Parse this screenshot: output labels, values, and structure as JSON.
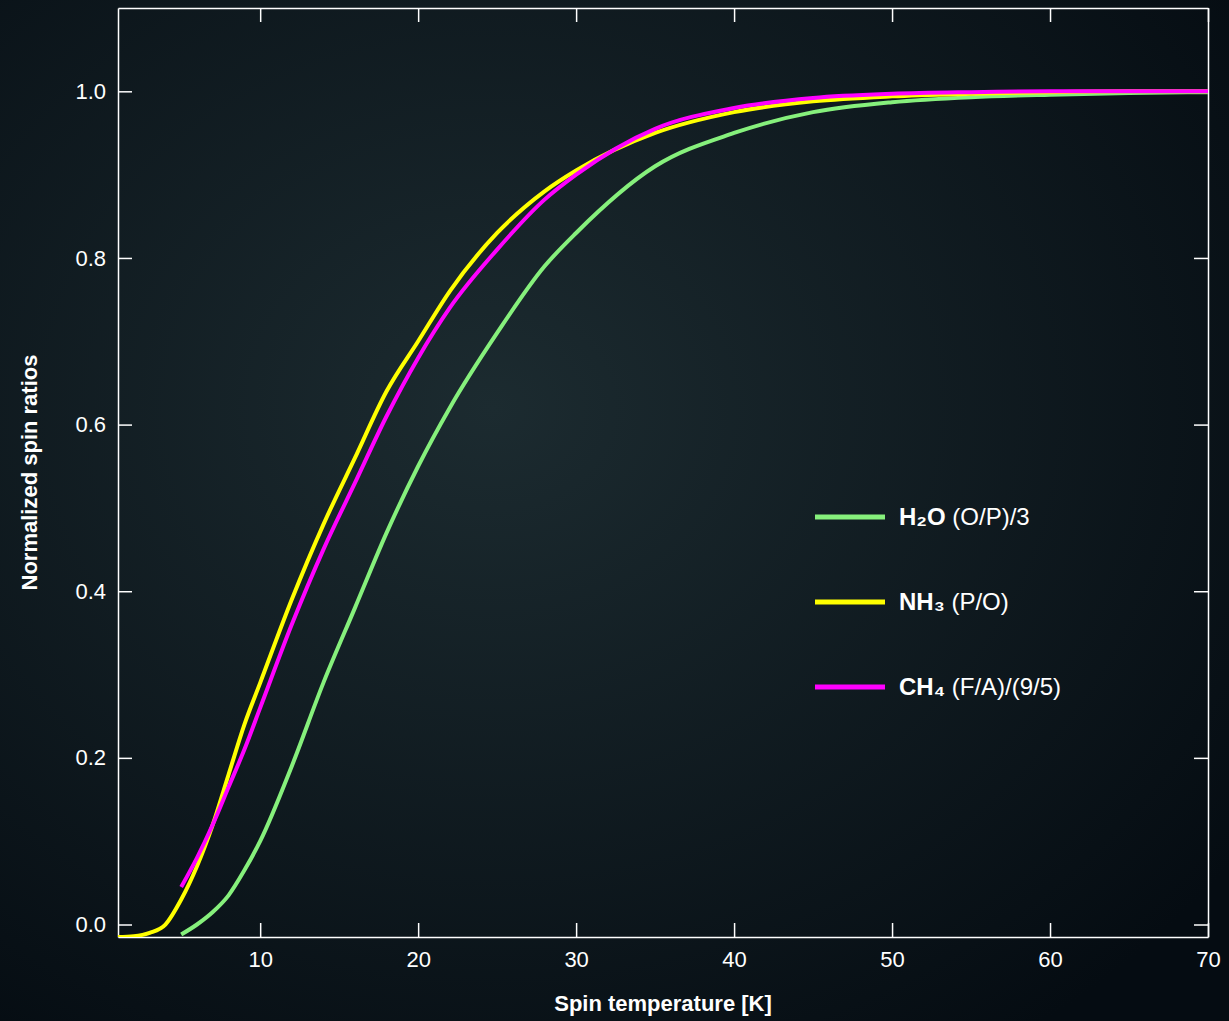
{
  "chart_data": {
    "type": "line",
    "x_label": "Spin temperature [K]",
    "y_label": "Normalized spin ratios",
    "x": [
      1,
      2,
      3,
      4,
      5,
      6,
      7,
      8,
      9,
      10,
      12,
      14,
      16,
      18,
      20,
      22,
      25,
      28,
      30,
      35,
      40,
      45,
      50,
      55,
      60,
      65,
      70
    ],
    "series": [
      {
        "name": "H₂O (O/P)/3",
        "color": "#86f07c",
        "values": [
          null,
          null,
          null,
          null,
          -0.012,
          0.0,
          0.015,
          0.035,
          0.065,
          0.1,
          0.19,
          0.29,
          0.38,
          0.47,
          0.55,
          0.62,
          0.71,
          0.79,
          0.83,
          0.91,
          0.95,
          0.975,
          0.987,
          0.993,
          0.996,
          0.998,
          0.999
        ]
      },
      {
        "name": "NH₃ (P/O)",
        "color": "#ffff00",
        "values": [
          -0.015,
          -0.014,
          -0.01,
          0.0,
          0.03,
          0.07,
          0.12,
          0.18,
          0.24,
          0.29,
          0.39,
          0.48,
          0.56,
          0.64,
          0.7,
          0.76,
          0.83,
          0.88,
          0.905,
          0.95,
          0.975,
          0.988,
          0.994,
          0.997,
          0.999,
          1.0,
          1.0
        ]
      },
      {
        "name": "CH₄ (F/A)/(9/5)",
        "color": "#ff00ff",
        "values": [
          null,
          null,
          null,
          null,
          0.045,
          0.08,
          0.12,
          0.165,
          0.21,
          0.26,
          0.36,
          0.45,
          0.53,
          0.61,
          0.68,
          0.74,
          0.81,
          0.87,
          0.9,
          0.955,
          0.98,
          0.992,
          0.997,
          0.999,
          1.0,
          1.0,
          1.0
        ]
      }
    ],
    "xlim": [
      1,
      70
    ],
    "ylim": [
      -0.015,
      1.1
    ],
    "xticks": [
      10,
      20,
      30,
      40,
      50,
      60,
      70
    ],
    "yticks": [
      {
        "value": 0,
        "label": "0.0"
      },
      {
        "value": 0.2,
        "label": "0.2"
      },
      {
        "value": 0.4,
        "label": "0.4"
      },
      {
        "value": 0.6,
        "label": "0.6"
      },
      {
        "value": 0.8,
        "label": "0.8"
      },
      {
        "value": 1,
        "label": "1.0"
      }
    ],
    "grid": false,
    "legend": "right"
  }
}
